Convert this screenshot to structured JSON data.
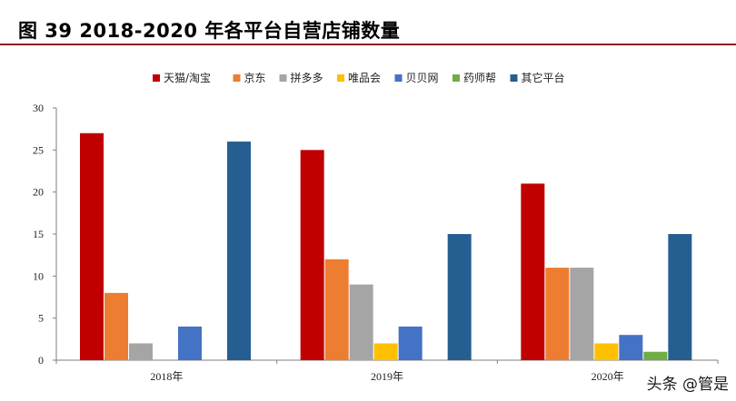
{
  "figure": {
    "title": "图 39 2018-2020 年各平台自营店铺数量"
  },
  "chart_data": {
    "type": "bar",
    "categories": [
      "2018年",
      "2019年",
      "2020年"
    ],
    "series": [
      {
        "name": "天猫/淘宝",
        "color": "#c00000",
        "values": [
          27,
          25,
          21
        ]
      },
      {
        "name": "京东",
        "color": "#ed7d31",
        "values": [
          8,
          12,
          11
        ]
      },
      {
        "name": "拼多多",
        "color": "#a5a5a5",
        "values": [
          2,
          9,
          11
        ]
      },
      {
        "name": "唯品会",
        "color": "#ffc000",
        "values": [
          0,
          2,
          2
        ]
      },
      {
        "name": "贝贝网",
        "color": "#4472c4",
        "values": [
          4,
          4,
          3
        ]
      },
      {
        "name": "药师帮",
        "color": "#70ad47",
        "values": [
          0,
          0,
          1
        ]
      },
      {
        "name": "其它平台",
        "color": "#255e91",
        "values": [
          26,
          15,
          15
        ]
      }
    ],
    "ylim": [
      0,
      30
    ],
    "yticks": [
      0,
      5,
      10,
      15,
      20,
      25,
      30
    ],
    "grid": false,
    "legend_position": "top"
  },
  "watermark": "头条 @管是"
}
